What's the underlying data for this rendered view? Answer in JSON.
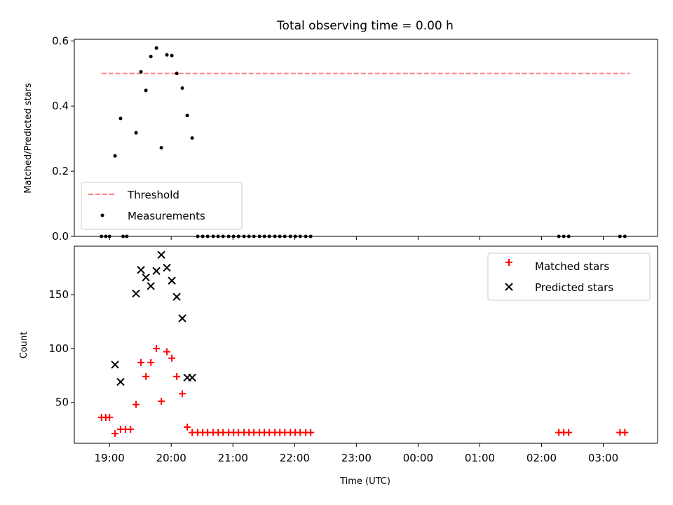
{
  "title": "Total observing time = 0.00 h",
  "chart_data": [
    {
      "type": "scatter",
      "ylabel": "Matched/Predicted stars",
      "ylim": [
        0,
        0.605
      ],
      "yticks": [
        0.0,
        0.2,
        0.4,
        0.6
      ],
      "ytick_labels": [
        "0.0",
        "0.2",
        "0.4",
        "0.6"
      ],
      "xlim_hours": [
        18.43,
        27.88
      ],
      "threshold": {
        "value": 0.5,
        "x_range_hours": [
          18.87,
          27.43
        ],
        "color": "#ff7f7f"
      },
      "series": [
        {
          "name": "Measurements",
          "color": "#000000",
          "x_hours": [
            18.87,
            18.94,
            19.0,
            19.22,
            19.28,
            19.09,
            19.18,
            19.43,
            19.51,
            19.59,
            19.67,
            19.76,
            19.84,
            19.93,
            20.01,
            20.09,
            20.18,
            20.26,
            20.34,
            20.43,
            20.51,
            20.59,
            20.68,
            20.76,
            20.84,
            20.93,
            21.01,
            21.09,
            21.18,
            21.26,
            21.34,
            21.43,
            21.51,
            21.59,
            21.68,
            21.76,
            21.84,
            21.93,
            22.01,
            22.09,
            22.18,
            22.26,
            26.28,
            26.36,
            26.44,
            27.27,
            27.35
          ],
          "y": [
            0.0,
            0.0,
            0.0,
            0.0,
            0.0,
            0.247,
            0.362,
            0.318,
            0.505,
            0.448,
            0.552,
            0.578,
            0.272,
            0.557,
            0.555,
            0.5,
            0.455,
            0.371,
            0.302,
            0.0,
            0.0,
            0.0,
            0.0,
            0.0,
            0.0,
            0.0,
            0.0,
            0.0,
            0.0,
            0.0,
            0.0,
            0.0,
            0.0,
            0.0,
            0.0,
            0.0,
            0.0,
            0.0,
            0.0,
            0.0,
            0.0,
            0.0,
            0.0,
            0.0,
            0.0,
            0.0,
            0.0
          ]
        }
      ],
      "legend": {
        "location": "lower-left",
        "entries": [
          {
            "label": "Threshold",
            "marker": "dashed-line",
            "color": "#ff7f7f"
          },
          {
            "label": "Measurements",
            "marker": "dot",
            "color": "#000000"
          }
        ]
      }
    },
    {
      "type": "scatter",
      "ylabel": "Count",
      "xlabel": "Time (UTC)",
      "ylim": [
        12,
        195
      ],
      "yticks": [
        50,
        100,
        150
      ],
      "ytick_labels": [
        "50",
        "100",
        "150"
      ],
      "xlim_hours": [
        18.43,
        27.88
      ],
      "xticks_hours": [
        19,
        20,
        21,
        22,
        23,
        24,
        25,
        26,
        27
      ],
      "xtick_labels": [
        "19:00",
        "20:00",
        "21:00",
        "22:00",
        "23:00",
        "00:00",
        "01:00",
        "02:00",
        "03:00"
      ],
      "series": [
        {
          "name": "Matched stars",
          "marker": "plus",
          "color": "#ff0000",
          "x_hours": [
            18.87,
            18.94,
            19.0,
            19.09,
            19.18,
            19.26,
            19.34,
            19.43,
            19.51,
            19.59,
            19.67,
            19.76,
            19.84,
            19.93,
            20.01,
            20.09,
            20.18,
            20.26,
            20.34,
            20.43,
            20.51,
            20.59,
            20.68,
            20.76,
            20.84,
            20.93,
            21.01,
            21.09,
            21.18,
            21.26,
            21.34,
            21.43,
            21.51,
            21.59,
            21.68,
            21.76,
            21.84,
            21.93,
            22.01,
            22.09,
            22.18,
            22.26,
            26.28,
            26.36,
            26.44,
            27.27,
            27.35
          ],
          "y": [
            36,
            36,
            36,
            21,
            25,
            25,
            25,
            48,
            87,
            74,
            87,
            100,
            51,
            97,
            91,
            74,
            58,
            27,
            22,
            22,
            22,
            22,
            22,
            22,
            22,
            22,
            22,
            22,
            22,
            22,
            22,
            22,
            22,
            22,
            22,
            22,
            22,
            22,
            22,
            22,
            22,
            22,
            22,
            22,
            22,
            22,
            22
          ]
        },
        {
          "name": "Predicted stars",
          "marker": "x",
          "color": "#000000",
          "x_hours": [
            19.09,
            19.18,
            19.43,
            19.51,
            19.59,
            19.67,
            19.76,
            19.84,
            19.93,
            20.01,
            20.09,
            20.18,
            20.26,
            20.34
          ],
          "y": [
            85,
            69,
            151,
            173,
            166,
            158,
            172,
            187,
            175,
            163,
            148,
            128,
            73,
            73
          ]
        }
      ],
      "legend": {
        "location": "upper-right",
        "entries": [
          {
            "label": "Matched stars",
            "marker": "plus",
            "color": "#ff0000"
          },
          {
            "label": "Predicted stars",
            "marker": "x",
            "color": "#000000"
          }
        ]
      }
    }
  ]
}
